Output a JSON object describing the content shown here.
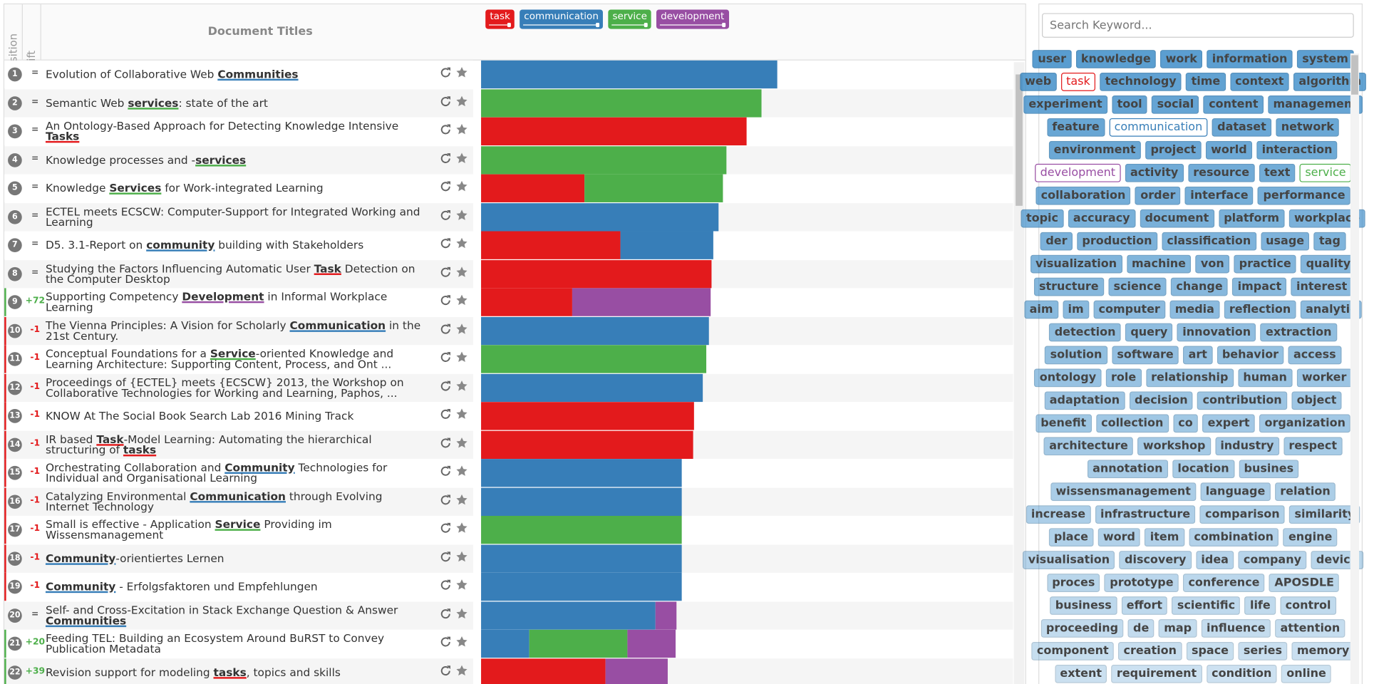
{
  "header": {
    "columns": [
      "Position",
      "Shift",
      "Document Titles"
    ],
    "legend": [
      {
        "name": "task",
        "color": "#e31a1c"
      },
      {
        "name": "communication",
        "color": "#377eb8"
      },
      {
        "name": "service",
        "color": "#4daf4a"
      },
      {
        "name": "development",
        "color": "#984ea3"
      }
    ]
  },
  "rows": [
    {
      "position": 1,
      "shift": "=",
      "title": [
        "Evolution of Collaborative Web ",
        {
          "text": "Communities",
          "color": "#377eb8"
        }
      ],
      "segments": [
        {
          "color": "#377eb8",
          "value": 338
        }
      ]
    },
    {
      "position": 2,
      "shift": "=",
      "title": [
        "Semantic Web ",
        {
          "text": "services",
          "color": "#4daf4a"
        },
        ": state of the art"
      ],
      "segments": [
        {
          "color": "#4daf4a",
          "value": 320
        }
      ]
    },
    {
      "position": 3,
      "shift": "=",
      "title": [
        "An Ontology-Based Approach for Detecting Knowledge Intensive ",
        {
          "text": "Tasks",
          "color": "#e31a1c"
        }
      ],
      "segments": [
        {
          "color": "#e31a1c",
          "value": 303
        }
      ]
    },
    {
      "position": 4,
      "shift": "=",
      "title": [
        "Knowledge processes and -",
        {
          "text": "services",
          "color": "#4daf4a"
        }
      ],
      "segments": [
        {
          "color": "#4daf4a",
          "value": 280
        }
      ]
    },
    {
      "position": 5,
      "shift": "=",
      "title": [
        "Knowledge ",
        {
          "text": "Services",
          "color": "#4daf4a"
        },
        " for Work-integrated Learning"
      ],
      "segments": [
        {
          "color": "#e31a1c",
          "value": 118
        },
        {
          "color": "#4daf4a",
          "value": 158
        }
      ]
    },
    {
      "position": 6,
      "shift": "=",
      "title": [
        "ECTEL meets ECSCW: Computer-Support for Integrated Working and Learning"
      ],
      "segments": [
        {
          "color": "#377eb8",
          "value": 271
        }
      ]
    },
    {
      "position": 7,
      "shift": "=",
      "title": [
        "D5. 3.1-Report on ",
        {
          "text": "community",
          "color": "#377eb8"
        },
        " building with Stakeholders"
      ],
      "segments": [
        {
          "color": "#e31a1c",
          "value": 159
        },
        {
          "color": "#377eb8",
          "value": 106
        }
      ]
    },
    {
      "position": 8,
      "shift": "=",
      "title": [
        "Studying the Factors Influencing Automatic User ",
        {
          "text": "Task",
          "color": "#e31a1c"
        },
        " Detection on the Computer Desktop"
      ],
      "segments": [
        {
          "color": "#e31a1c",
          "value": 263
        }
      ]
    },
    {
      "position": 9,
      "shift": "+72",
      "title": [
        "Supporting Competency ",
        {
          "text": "Development",
          "color": "#984ea3"
        },
        " in Informal Workplace Learning"
      ],
      "segments": [
        {
          "color": "#e31a1c",
          "value": 104
        },
        {
          "color": "#984ea3",
          "value": 158
        }
      ]
    },
    {
      "position": 10,
      "shift": "-1",
      "title": [
        "The Vienna Principles: A Vision for Scholarly ",
        {
          "text": "Communication",
          "color": "#377eb8"
        },
        " in the 21st Century."
      ],
      "segments": [
        {
          "color": "#377eb8",
          "value": 260
        }
      ]
    },
    {
      "position": 11,
      "shift": "-1",
      "title": [
        "Conceptual Foundations for a ",
        {
          "text": "Service",
          "color": "#4daf4a"
        },
        "-oriented Knowledge and Learning Architecture: Supporting Content, Process, and Ont ..."
      ],
      "segments": [
        {
          "color": "#4daf4a",
          "value": 257
        }
      ]
    },
    {
      "position": 12,
      "shift": "-1",
      "title": [
        "Proceedings of {ECTEL} meets {ECSCW} 2013, the Workshop on Collaborative Technologies for Working and Learning, Paphos, ..."
      ],
      "segments": [
        {
          "color": "#377eb8",
          "value": 253
        }
      ]
    },
    {
      "position": 13,
      "shift": "-1",
      "title": [
        "KNOW At The Social Book Search Lab 2016 Mining Track"
      ],
      "segments": [
        {
          "color": "#e31a1c",
          "value": 243
        }
      ]
    },
    {
      "position": 14,
      "shift": "-1",
      "title": [
        "IR based ",
        {
          "text": "Task",
          "color": "#e31a1c"
        },
        "-Model Learning: Automating the hierarchical structuring of ",
        {
          "text": "tasks",
          "color": "#e31a1c"
        }
      ],
      "segments": [
        {
          "color": "#e31a1c",
          "value": 242
        }
      ]
    },
    {
      "position": 15,
      "shift": "-1",
      "title": [
        "Orchestrating Collaboration and ",
        {
          "text": "Community",
          "color": "#377eb8"
        },
        " Technologies for Individual and Organisational Learning"
      ],
      "segments": [
        {
          "color": "#377eb8",
          "value": 229
        }
      ]
    },
    {
      "position": 16,
      "shift": "-1",
      "title": [
        "Catalyzing Environmental ",
        {
          "text": "Communication",
          "color": "#377eb8"
        },
        " through Evolving Internet Technology"
      ],
      "segments": [
        {
          "color": "#377eb8",
          "value": 229
        }
      ]
    },
    {
      "position": 17,
      "shift": "-1",
      "title": [
        "Small is effective - Application ",
        {
          "text": "Service",
          "color": "#4daf4a"
        },
        " Providing im Wissensmanagement"
      ],
      "segments": [
        {
          "color": "#4daf4a",
          "value": 229
        }
      ]
    },
    {
      "position": 18,
      "shift": "-1",
      "title": [
        {
          "text": "Community",
          "color": "#377eb8"
        },
        "-orientiertes Lernen"
      ],
      "segments": [
        {
          "color": "#377eb8",
          "value": 229
        }
      ]
    },
    {
      "position": 19,
      "shift": "-1",
      "title": [
        {
          "text": "Community",
          "color": "#377eb8"
        },
        " - Erfolgsfaktoren und Empfehlungen"
      ],
      "segments": [
        {
          "color": "#377eb8",
          "value": 229
        }
      ]
    },
    {
      "position": 20,
      "shift": "=",
      "title": [
        "Self- and Cross-Excitation in Stack Exchange Question & Answer ",
        {
          "text": "Communities",
          "color": "#377eb8"
        }
      ],
      "segments": [
        {
          "color": "#377eb8",
          "value": 199
        },
        {
          "color": "#984ea3",
          "value": 24
        }
      ]
    },
    {
      "position": 21,
      "shift": "+20",
      "title": [
        "Feeding TEL: Building an Ecosystem Around BuRST to Convey Publication Metadata"
      ],
      "segments": [
        {
          "color": "#377eb8",
          "value": 55
        },
        {
          "color": "#4daf4a",
          "value": 112
        },
        {
          "color": "#984ea3",
          "value": 55
        }
      ]
    },
    {
      "position": 22,
      "shift": "+39",
      "title": [
        "Revision support for modeling ",
        {
          "text": "tasks",
          "color": "#e31a1c"
        },
        ", topics and skills"
      ],
      "segments": [
        {
          "color": "#e31a1c",
          "value": 142
        },
        {
          "color": "#984ea3",
          "value": 71
        }
      ]
    }
  ],
  "search_placeholder": "Search Keyword...",
  "keyword_rows": [
    [
      "user",
      "knowledge",
      "work",
      "information",
      "system"
    ],
    [
      "web",
      {
        "label": "task",
        "color": "#e31a1c"
      },
      "technology",
      "time",
      "context",
      "algorithm"
    ],
    [
      "experiment",
      "tool",
      "social",
      "content",
      "management"
    ],
    [
      "feature",
      {
        "label": "communication",
        "color": "#377eb8"
      },
      "dataset",
      "network"
    ],
    [
      "environment",
      "project",
      "world",
      "interaction"
    ],
    [
      {
        "label": "development",
        "color": "#984ea3"
      },
      "activity",
      "resource",
      "text",
      {
        "label": "service",
        "color": "#4daf4a"
      }
    ],
    [
      "collaboration",
      "order",
      "interface",
      "performance"
    ],
    [
      "topic",
      "accuracy",
      "document",
      "platform",
      "workplace"
    ],
    [
      "der",
      "production",
      "classification",
      "usage",
      "tag"
    ],
    [
      "visualization",
      "machine",
      "von",
      "practice",
      "quality"
    ],
    [
      "structure",
      "science",
      "change",
      "impact",
      "interest"
    ],
    [
      "aim",
      "im",
      "computer",
      "media",
      "reflection",
      "analytic"
    ],
    [
      "detection",
      "query",
      "innovation",
      "extraction"
    ],
    [
      "solution",
      "software",
      "art",
      "behavior",
      "access"
    ],
    [
      "ontology",
      "role",
      "relationship",
      "human",
      "worker"
    ],
    [
      "adaptation",
      "decision",
      "contribution",
      "object"
    ],
    [
      "benefit",
      "collection",
      "co",
      "expert",
      "organization"
    ],
    [
      "architecture",
      "workshop",
      "industry",
      "respect"
    ],
    [
      "annotation",
      "location",
      "busines"
    ],
    [
      "wissensmanagement",
      "language",
      "relation"
    ],
    [
      "increase",
      "infrastructure",
      "comparison",
      "similarity"
    ],
    [
      "place",
      "word",
      "item",
      "combination",
      "engine"
    ],
    [
      "visualisation",
      "discovery",
      "idea",
      "company",
      "device"
    ],
    [
      "proces",
      "prototype",
      "conference",
      "APOSDLE"
    ],
    [
      "business",
      "effort",
      "scientific",
      "life",
      "control"
    ],
    [
      "proceeding",
      "de",
      "map",
      "influence",
      "attention"
    ],
    [
      "component",
      "creation",
      "space",
      "series",
      "memory"
    ],
    [
      "extent",
      "requirement",
      "condition",
      "online"
    ]
  ]
}
